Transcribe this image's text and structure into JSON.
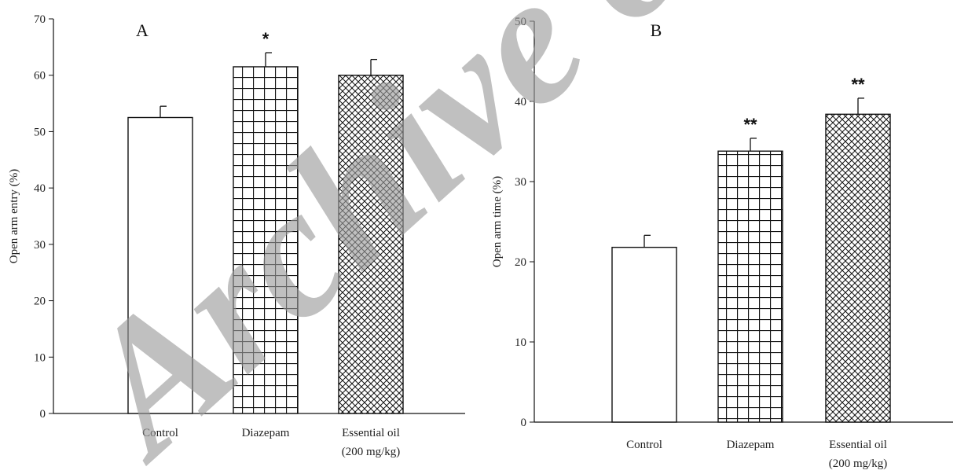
{
  "watermark": "Archive of",
  "chart_data": [
    {
      "type": "bar",
      "panel_label": "A",
      "categories": [
        [
          "Control"
        ],
        [
          "Diazepam"
        ],
        [
          "Essential oil",
          "(200 mg/kg)"
        ]
      ],
      "values": [
        52.5,
        61.5,
        60.0
      ],
      "errors": [
        2.0,
        2.5,
        2.8
      ],
      "significance": [
        "",
        "*",
        ""
      ],
      "patterns": [
        "none",
        "grid",
        "crosshatch"
      ],
      "ylabel": "Open arm entry (%)",
      "ylim": [
        0,
        70
      ],
      "yticks": [
        0,
        10,
        20,
        30,
        40,
        50,
        60,
        70
      ],
      "grid": false
    },
    {
      "type": "bar",
      "panel_label": "B",
      "categories": [
        [
          "Control"
        ],
        [
          "Diazepam"
        ],
        [
          "Essential oil",
          "(200 mg/kg)"
        ]
      ],
      "values": [
        21.8,
        33.8,
        38.4
      ],
      "errors": [
        1.5,
        1.6,
        2.0
      ],
      "significance": [
        "",
        "**",
        "**"
      ],
      "patterns": [
        "none",
        "grid",
        "crosshatch"
      ],
      "ylabel": "Open arm time (%)",
      "ylim": [
        0,
        50
      ],
      "yticks": [
        0,
        10,
        20,
        30,
        40,
        50
      ],
      "grid": false
    }
  ]
}
